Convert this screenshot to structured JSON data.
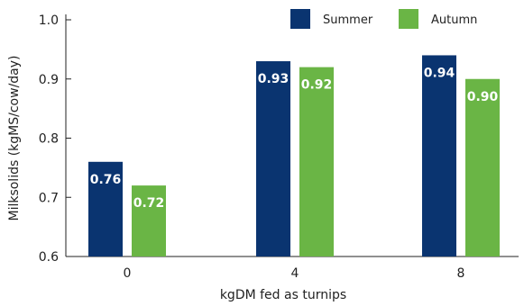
{
  "chart_data": {
    "type": "bar",
    "categories": [
      "0",
      "4",
      "8"
    ],
    "series": [
      {
        "name": "Summer",
        "values": [
          0.76,
          0.93,
          0.94
        ],
        "labels": [
          "0.76",
          "0.93",
          "0.94"
        ],
        "color": "#0a3470"
      },
      {
        "name": "Autumn",
        "values": [
          0.72,
          0.92,
          0.9
        ],
        "labels": [
          "0.72",
          "0.92",
          "0.90"
        ],
        "color": "#6ab545"
      }
    ],
    "title": "",
    "xlabel": "kgDM fed as turnips",
    "ylabel": "Milksolids (kgMS/cow/day)",
    "ylim": [
      0.6,
      1.0
    ],
    "yticks": [
      "0.6",
      "0.7",
      "0.8",
      "0.9",
      "1.0"
    ],
    "grid": false,
    "legend_position": "top-right",
    "axis_color": "#222222"
  }
}
